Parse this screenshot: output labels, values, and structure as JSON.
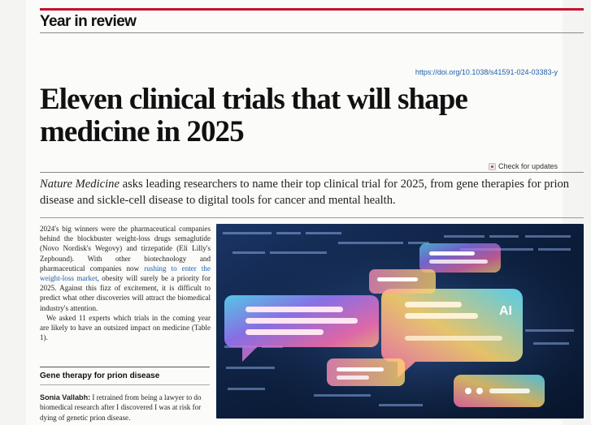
{
  "section_label": "Year in review",
  "doi": "https://doi.org/10.1038/s41591-024-03383-y",
  "headline": "Eleven clinical trials that will shape medicine in 2025",
  "check_updates": "Check for updates",
  "standfirst": {
    "journal": "Nature Medicine",
    "rest": " asks leading researchers to name their top clinical trial for 2025, from gene therapies for prion disease and sickle-cell disease to digital tools for cancer and mental health."
  },
  "body": {
    "p1_a": "2024's big winners were the pharmaceutical companies behind the blockbuster weight-loss drugs semaglutide (Novo Nordisk's Wegovy) and tirzepatide (Eli Lilly's Zepbound). With other biotechnology and pharmaceutical companies now ",
    "p1_link": "rushing to enter the weight-loss market",
    "p1_b": ", obesity will surely be a priority for 2025. Against this fizz of excitement, it is difficult to predict what other discoveries will attract the biomedical industry's attention.",
    "p2": "We asked 11 experts which trials in the coming year are likely to have an outsized impact on medicine (Table 1)."
  },
  "subhead": "Gene therapy for prion disease",
  "body2": {
    "author": "Sonia Vallabh:",
    "text": " I retrained from being a lawyer to do biomedical research after I discovered I was at risk for dying of genetic prion disease."
  },
  "figure": {
    "ai_label": "AI",
    "colors": {
      "background": "#0b1d3a",
      "accent_pink": "#ff6fb1",
      "accent_cyan": "#5fe3ff",
      "accent_yellow": "#ffd56a",
      "accent_purple": "#9b7bff"
    }
  },
  "colors": {
    "accent_red": "#c8102e",
    "link_blue": "#1f5fa8"
  }
}
